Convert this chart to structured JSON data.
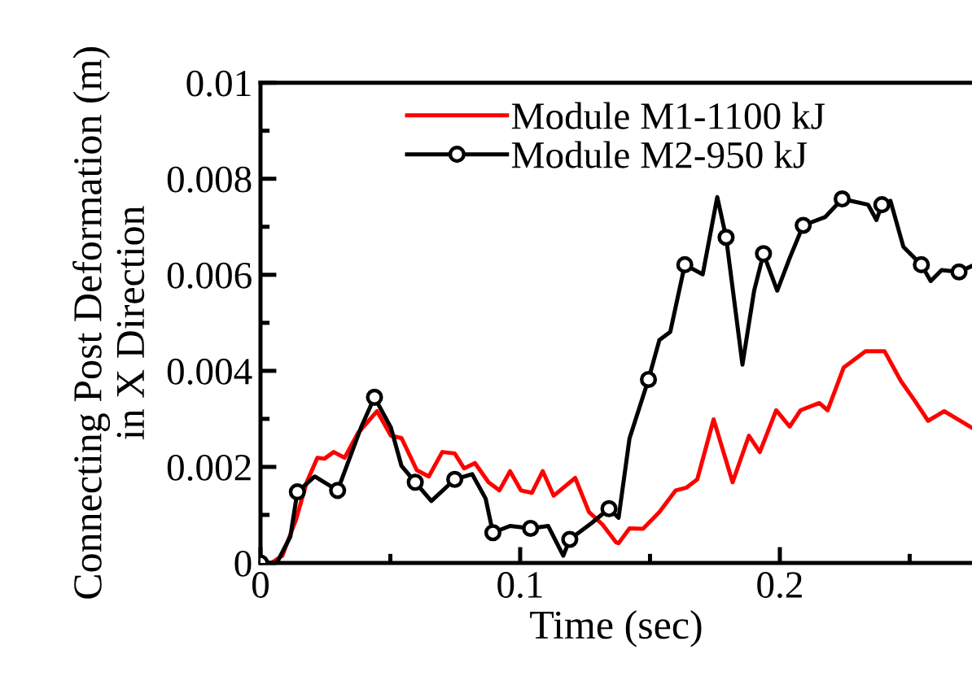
{
  "chart_data": {
    "type": "line",
    "xlabel": "Time (sec)",
    "ylabel": "Connecting Post Deformation (m)\nin X Direction",
    "xlim": [
      0,
      0.274
    ],
    "ylim": [
      0,
      0.01
    ],
    "xticks": [
      0,
      {
        "value": 0.05,
        "label": null
      },
      0.1,
      {
        "value": 0.15,
        "label": null
      },
      0.2,
      {
        "value": 0.25,
        "label": null
      }
    ],
    "yticks": [
      0,
      {
        "value": 0.001,
        "label": null
      },
      0.002,
      {
        "value": 0.003,
        "label": null
      },
      0.004,
      {
        "value": 0.005,
        "label": null
      },
      0.006,
      {
        "value": 0.007,
        "label": null
      },
      0.008,
      {
        "value": 0.009,
        "label": null
      },
      0.01
    ],
    "grid": false,
    "legend": "top",
    "line_style": "solid",
    "series": [
      {
        "name": "Module M1-1100 kJ",
        "color": "#ff0000",
        "marker": "none",
        "x": [
          0,
          0.0042,
          0.0084,
          0.0136,
          0.0178,
          0.0219,
          0.0246,
          0.0282,
          0.0324,
          0.0376,
          0.0449,
          0.0502,
          0.0543,
          0.0602,
          0.0648,
          0.07,
          0.0748,
          0.0784,
          0.0826,
          0.0878,
          0.092,
          0.0961,
          0.1003,
          0.1045,
          0.1087,
          0.1129,
          0.1212,
          0.1265,
          0.1317,
          0.1369,
          0.1379,
          0.1421,
          0.1473,
          0.1536,
          0.1599,
          0.1641,
          0.1682,
          0.1745,
          0.1818,
          0.1881,
          0.1923,
          0.1986,
          0.2038,
          0.208,
          0.2152,
          0.2184,
          0.2246,
          0.233,
          0.2403,
          0.2466,
          0.2518,
          0.2571,
          0.2633,
          0.2738
        ],
        "values": [
          0,
          0,
          0.00015,
          0.00089,
          0.00168,
          0.00219,
          0.00217,
          0.00231,
          0.00219,
          0.00271,
          0.00316,
          0.00265,
          0.0026,
          0.00193,
          0.0018,
          0.00231,
          0.00228,
          0.00197,
          0.00208,
          0.00168,
          0.00151,
          0.00191,
          0.00151,
          0.00146,
          0.00191,
          0.0014,
          0.00177,
          0.00106,
          0.0008,
          0.00043,
          0.00041,
          0.00072,
          0.00071,
          0.00106,
          0.00151,
          0.00157,
          0.00174,
          0.00299,
          0.00168,
          0.00265,
          0.00231,
          0.00318,
          0.00284,
          0.00318,
          0.00333,
          0.00318,
          0.00407,
          0.00441,
          0.00441,
          0.00379,
          0.00339,
          0.00296,
          0.00316,
          0.00282
        ]
      },
      {
        "color": "#000000",
        "marker": "none",
        "x": [
          0,
          0.0063,
          0.0115,
          0.0142,
          0.0209,
          0.0297,
          0.0387,
          0.0439,
          0.0502,
          0.0543,
          0.0596,
          0.0658,
          0.0748,
          0.0815,
          0.0867,
          0.0895,
          0.0961,
          0.104,
          0.1108,
          0.1166,
          0.1191,
          0.1275,
          0.1342,
          0.1379,
          0.1421,
          0.1494,
          0.1536,
          0.1578,
          0.1634,
          0.1703,
          0.1759,
          0.1793,
          0.1856,
          0.1901,
          0.1937,
          0.199,
          0.2038,
          0.209,
          0.2174,
          0.224,
          0.234,
          0.2372,
          0.2393,
          0.2426,
          0.2476,
          0.2545,
          0.2581,
          0.2623,
          0.269,
          0.2738
        ],
        "values": [
          0,
          0,
          0.00055,
          0.00148,
          0.0018,
          0.00151,
          0.00282,
          0.00345,
          0.00282,
          0.00202,
          0.00168,
          0.00129,
          0.00174,
          0.00185,
          0.00134,
          0.00063,
          0.00077,
          0.00072,
          0.00077,
          0.00015,
          0.00049,
          0.00083,
          0.00113,
          0.00094,
          0.00259,
          0.00382,
          0.00464,
          0.00481,
          0.00621,
          0.00601,
          0.00762,
          0.00678,
          0.00413,
          0.00567,
          0.00644,
          0.00567,
          0.00635,
          0.00703,
          0.0072,
          0.00758,
          0.00746,
          0.00714,
          0.00746,
          0.00754,
          0.00658,
          0.00621,
          0.00587,
          0.0061,
          0.00606,
          0.00618
        ]
      },
      {
        "name": "Module M2-950 kJ",
        "type": "scatter",
        "color": "#000000",
        "marker": "circle",
        "x": [
          0,
          0.0142,
          0.0297,
          0.0439,
          0.0596,
          0.0748,
          0.0895,
          0.104,
          0.1191,
          0.1342,
          0.1494,
          0.1634,
          0.1793,
          0.1937,
          0.209,
          0.224,
          0.2393,
          0.2545,
          0.269
        ],
        "values": [
          0,
          0.00148,
          0.00151,
          0.00345,
          0.00168,
          0.00174,
          0.00063,
          0.00072,
          0.00049,
          0.00113,
          0.00382,
          0.00621,
          0.00678,
          0.00644,
          0.00703,
          0.00758,
          0.00746,
          0.00621,
          0.00606
        ]
      }
    ]
  }
}
